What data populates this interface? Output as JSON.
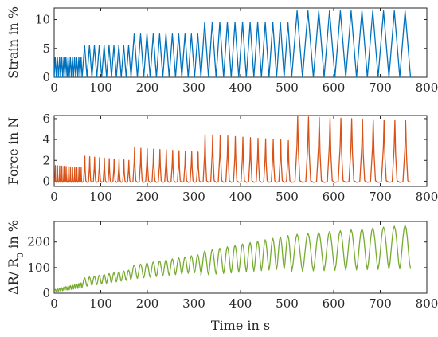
{
  "chart_data": [
    {
      "type": "line",
      "title": "",
      "xlabel": "",
      "ylabel": "Strain in %",
      "xlim": [
        0,
        800
      ],
      "ylim": [
        0,
        12
      ],
      "xticks": [
        0,
        100,
        200,
        300,
        400,
        500,
        600,
        700,
        800
      ],
      "yticks": [
        0,
        5,
        10
      ],
      "grid": false,
      "color": "#0072BD",
      "series": [
        {
          "segments": [
            {
              "x_start": 0,
              "x_end": 60,
              "cycles": 13,
              "min": 0,
              "max": 3.5
            },
            {
              "x_start": 60,
              "x_end": 165,
              "cycles": 10,
              "min": 0,
              "max": 5.5
            },
            {
              "x_start": 165,
              "x_end": 315,
              "cycles": 11,
              "min": 0,
              "max": 7.5
            },
            {
              "x_start": 315,
              "x_end": 510,
              "cycles": 12,
              "min": 0,
              "max": 9.5
            },
            {
              "x_start": 510,
              "x_end": 765,
              "cycles": 11,
              "min": 0,
              "max": 11.5
            }
          ]
        }
      ]
    },
    {
      "type": "line",
      "title": "",
      "xlabel": "",
      "ylabel": "Force in N",
      "xlim": [
        0,
        800
      ],
      "ylim": [
        -0.5,
        6.3
      ],
      "xticks": [
        0,
        100,
        200,
        300,
        400,
        500,
        600,
        700,
        800
      ],
      "yticks": [
        0,
        2,
        4,
        6
      ],
      "grid": false,
      "color": "#D95319",
      "series": [
        {
          "segments": [
            {
              "x_start": 0,
              "x_end": 60,
              "cycles": 13,
              "min": -0.1,
              "peak_first": 1.5,
              "peak_last": 1.3
            },
            {
              "x_start": 60,
              "x_end": 165,
              "cycles": 10,
              "min": -0.1,
              "peak_first": 2.4,
              "peak_last": 2.0
            },
            {
              "x_start": 165,
              "x_end": 315,
              "cycles": 11,
              "min": -0.1,
              "peak_first": 3.2,
              "peak_last": 2.8
            },
            {
              "x_start": 315,
              "x_end": 510,
              "cycles": 12,
              "min": -0.1,
              "peak_first": 4.5,
              "peak_last": 3.9
            },
            {
              "x_start": 510,
              "x_end": 765,
              "cycles": 11,
              "min": -0.1,
              "peak_first": 6.2,
              "peak_last": 5.8
            }
          ]
        }
      ]
    },
    {
      "type": "line",
      "title": "",
      "xlabel": "Time in s",
      "ylabel": "ΔR/ R_0 in %",
      "xlim": [
        0,
        800
      ],
      "ylim": [
        0,
        280
      ],
      "xticks": [
        0,
        100,
        200,
        300,
        400,
        500,
        600,
        700,
        800
      ],
      "yticks": [
        0,
        100,
        200
      ],
      "grid": false,
      "color": "#77AC30",
      "series": [
        {
          "segments": [
            {
              "x_start": 0,
              "x_end": 60,
              "cycles": 13,
              "min_first": 5,
              "min_last": 20,
              "max_first": 15,
              "max_last": 40
            },
            {
              "x_start": 60,
              "x_end": 165,
              "cycles": 10,
              "min_first": 25,
              "min_last": 50,
              "max_first": 60,
              "max_last": 90
            },
            {
              "x_start": 165,
              "x_end": 315,
              "cycles": 11,
              "min_first": 55,
              "min_last": 80,
              "max_first": 110,
              "max_last": 150
            },
            {
              "x_start": 315,
              "x_end": 510,
              "cycles": 12,
              "min_first": 70,
              "min_last": 95,
              "max_first": 165,
              "max_last": 225
            },
            {
              "x_start": 510,
              "x_end": 765,
              "cycles": 11,
              "min_first": 85,
              "min_last": 95,
              "max_first": 230,
              "max_last": 265
            }
          ]
        }
      ]
    }
  ]
}
